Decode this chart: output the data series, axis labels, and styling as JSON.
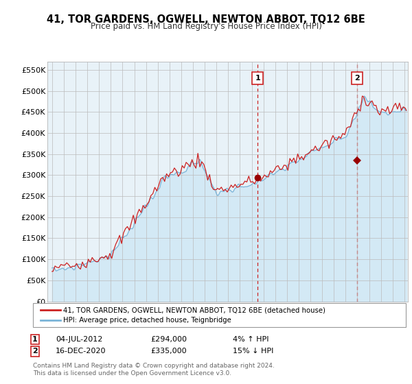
{
  "title": "41, TOR GARDENS, OGWELL, NEWTON ABBOT, TQ12 6BE",
  "subtitle": "Price paid vs. HM Land Registry's House Price Index (HPI)",
  "yticks": [
    0,
    50000,
    100000,
    150000,
    200000,
    250000,
    300000,
    350000,
    400000,
    450000,
    500000,
    550000
  ],
  "ytick_labels": [
    "£0",
    "£50K",
    "£100K",
    "£150K",
    "£200K",
    "£250K",
    "£300K",
    "£350K",
    "£400K",
    "£450K",
    "£500K",
    "£550K"
  ],
  "hpi_color": "#7ab4d8",
  "hpi_fill_color": "#d0e8f5",
  "price_color": "#cc2222",
  "sale1_t": 2012.5,
  "sale1_v": 294000,
  "sale2_t": 2020.958,
  "sale2_v": 335000,
  "legend_line1": "41, TOR GARDENS, OGWELL, NEWTON ABBOT, TQ12 6BE (detached house)",
  "legend_line2": "HPI: Average price, detached house, Teignbridge",
  "footnote_line1": "Contains HM Land Registry data © Crown copyright and database right 2024.",
  "footnote_line2": "This data is licensed under the Open Government Licence v3.0.",
  "ann1_date": "04-JUL-2012",
  "ann1_price": "£294,000",
  "ann1_hpi": "4% ↑ HPI",
  "ann2_date": "16-DEC-2020",
  "ann2_price": "£335,000",
  "ann2_hpi": "15% ↓ HPI"
}
